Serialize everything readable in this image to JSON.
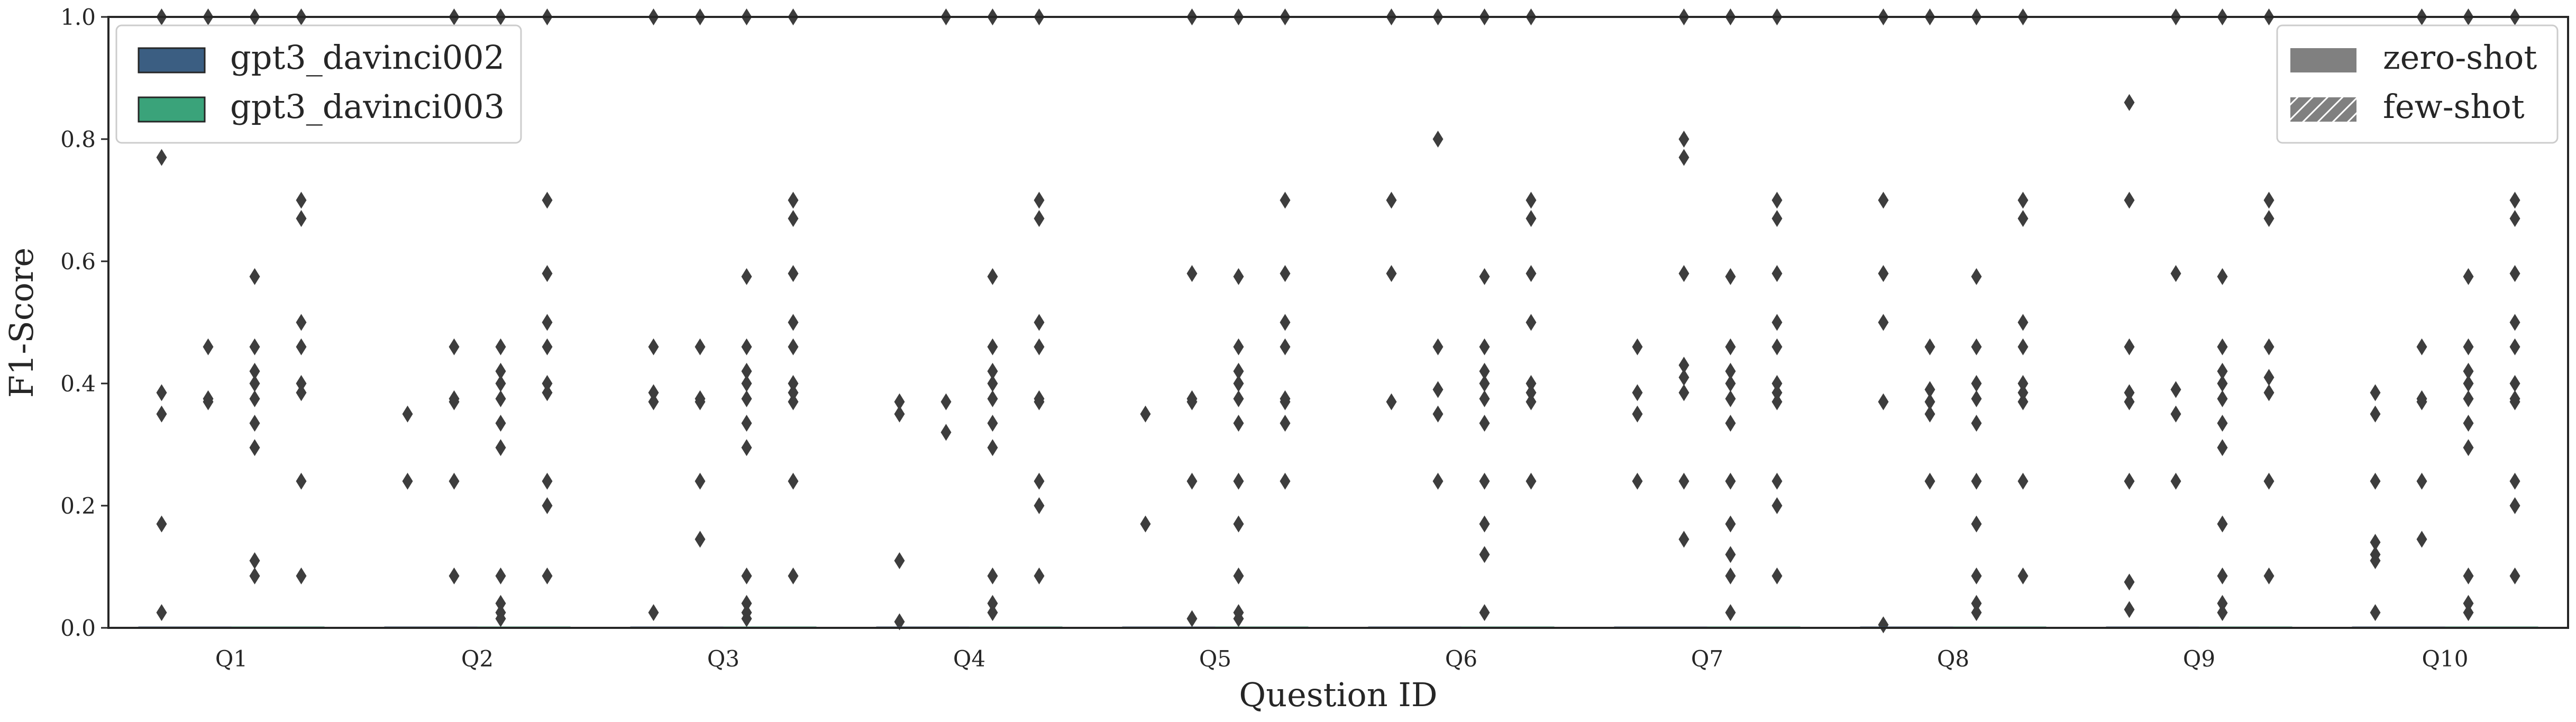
{
  "chart_data": {
    "type": "boxplot",
    "xlabel": "Question ID",
    "ylabel": "F1-Score",
    "ylim": [
      0.0,
      1.0
    ],
    "yticks": [
      "0.0",
      "0.2",
      "0.4",
      "0.6",
      "0.8",
      "1.0"
    ],
    "grid": false,
    "categories": [
      "Q1",
      "Q2",
      "Q3",
      "Q4",
      "Q5",
      "Q6",
      "Q7",
      "Q8",
      "Q9",
      "Q10"
    ],
    "legend_models": {
      "placement": "top-left",
      "entries": [
        {
          "name": "gpt3_davinci002",
          "color": "#3b5e82"
        },
        {
          "name": "gpt3_davinci003",
          "color": "#3aa37a"
        }
      ]
    },
    "legend_settings": {
      "placement": "top-right",
      "entries": [
        {
          "name": "zero-shot",
          "color": "#808080",
          "hatch": false
        },
        {
          "name": "few-shot",
          "color": "#808080",
          "hatch": true
        }
      ]
    },
    "series": [
      {
        "name": "gpt3_davinci002 zero-shot",
        "outliers": [
          [
            1.0,
            0.77,
            0.385,
            0.35,
            0.17,
            0.025
          ],
          [
            0.35,
            0.24
          ],
          [
            1.0,
            0.46,
            0.385,
            0.37,
            0.025
          ],
          [
            0.37,
            0.35,
            0.11,
            0.01
          ],
          [
            0.35,
            0.17
          ],
          [
            1.0,
            0.7,
            0.58,
            0.37
          ],
          [
            0.46,
            0.385,
            0.35,
            0.24
          ],
          [
            1.0,
            0.7,
            0.58,
            0.5,
            0.37,
            0.005
          ],
          [
            0.86,
            0.7,
            0.46,
            0.385,
            0.37,
            0.24,
            0.075,
            0.03
          ],
          [
            0.385,
            0.35,
            0.24,
            0.14,
            0.12,
            0.11,
            0.025
          ]
        ]
      },
      {
        "name": "gpt3_davinci002 few-shot",
        "outliers": [
          [
            1.0,
            0.46,
            0.375,
            0.37
          ],
          [
            1.0,
            0.46,
            0.375,
            0.37,
            0.24,
            0.085
          ],
          [
            1.0,
            0.46,
            0.375,
            0.37,
            0.24,
            0.145
          ],
          [
            1.0,
            0.37,
            0.32
          ],
          [
            1.0,
            0.58,
            0.375,
            0.37,
            0.24,
            0.015
          ],
          [
            1.0,
            0.8,
            0.46,
            0.39,
            0.35,
            0.24
          ],
          [
            1.0,
            0.8,
            0.77,
            0.58,
            0.43,
            0.41,
            0.385,
            0.24,
            0.145
          ],
          [
            1.0,
            0.46,
            0.39,
            0.37,
            0.35,
            0.24
          ],
          [
            1.0,
            0.58,
            0.39,
            0.35,
            0.24
          ],
          [
            1.0,
            0.46,
            0.375,
            0.37,
            0.24,
            0.145
          ]
        ]
      },
      {
        "name": "gpt3_davinci003 zero-shot",
        "outliers": [
          [
            1.0,
            0.575,
            0.46,
            0.42,
            0.4,
            0.375,
            0.335,
            0.295,
            0.11,
            0.085
          ],
          [
            1.0,
            0.46,
            0.42,
            0.4,
            0.375,
            0.335,
            0.295,
            0.085,
            0.04,
            0.025,
            0.015
          ],
          [
            1.0,
            0.575,
            0.46,
            0.42,
            0.4,
            0.375,
            0.335,
            0.295,
            0.085,
            0.04,
            0.025,
            0.015
          ],
          [
            1.0,
            0.575,
            0.46,
            0.42,
            0.4,
            0.375,
            0.335,
            0.295,
            0.085,
            0.04,
            0.025
          ],
          [
            1.0,
            0.575,
            0.46,
            0.42,
            0.4,
            0.375,
            0.335,
            0.24,
            0.17,
            0.085,
            0.025,
            0.015
          ],
          [
            1.0,
            0.575,
            0.46,
            0.42,
            0.4,
            0.375,
            0.335,
            0.24,
            0.17,
            0.12,
            0.025
          ],
          [
            1.0,
            0.575,
            0.46,
            0.42,
            0.4,
            0.375,
            0.335,
            0.24,
            0.17,
            0.12,
            0.085,
            0.025
          ],
          [
            1.0,
            0.575,
            0.46,
            0.4,
            0.375,
            0.335,
            0.24,
            0.17,
            0.085,
            0.04,
            0.025
          ],
          [
            1.0,
            0.575,
            0.46,
            0.42,
            0.4,
            0.375,
            0.335,
            0.295,
            0.17,
            0.085,
            0.04,
            0.025
          ],
          [
            1.0,
            0.575,
            0.46,
            0.42,
            0.4,
            0.375,
            0.335,
            0.295,
            0.085,
            0.04,
            0.025
          ]
        ]
      },
      {
        "name": "gpt3_davinci003 few-shot",
        "outliers": [
          [
            1.0,
            0.7,
            0.67,
            0.5,
            0.46,
            0.4,
            0.385,
            0.24,
            0.085
          ],
          [
            1.0,
            0.7,
            0.58,
            0.5,
            0.46,
            0.4,
            0.385,
            0.24,
            0.2,
            0.085
          ],
          [
            1.0,
            0.7,
            0.67,
            0.58,
            0.5,
            0.46,
            0.4,
            0.385,
            0.37,
            0.24,
            0.085
          ],
          [
            1.0,
            0.7,
            0.67,
            0.5,
            0.46,
            0.375,
            0.37,
            0.24,
            0.2,
            0.085
          ],
          [
            1.0,
            0.7,
            0.58,
            0.5,
            0.46,
            0.375,
            0.37,
            0.335,
            0.24
          ],
          [
            1.0,
            0.7,
            0.67,
            0.58,
            0.5,
            0.4,
            0.385,
            0.37,
            0.24
          ],
          [
            1.0,
            0.7,
            0.67,
            0.58,
            0.5,
            0.46,
            0.4,
            0.385,
            0.37,
            0.24,
            0.2,
            0.085
          ],
          [
            1.0,
            0.7,
            0.67,
            0.5,
            0.46,
            0.4,
            0.385,
            0.37,
            0.24,
            0.085
          ],
          [
            1.0,
            0.7,
            0.67,
            0.46,
            0.41,
            0.385,
            0.24,
            0.085
          ],
          [
            1.0,
            0.7,
            0.67,
            0.58,
            0.5,
            0.46,
            0.4,
            0.375,
            0.37,
            0.24,
            0.2,
            0.085
          ]
        ]
      }
    ]
  }
}
